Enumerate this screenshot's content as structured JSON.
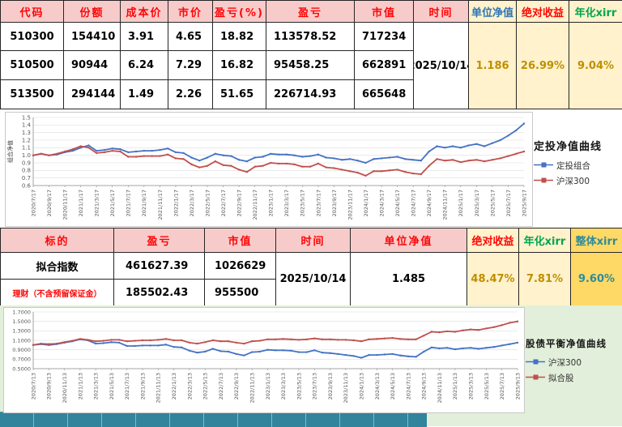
{
  "table1": {
    "headers": [
      "代码",
      "份额",
      "成本价",
      "市价",
      "盈亏(%)",
      "盈亏",
      "市值",
      "时间",
      "单位净值",
      "绝对收益",
      "年化xirr"
    ],
    "rows": [
      [
        "510300",
        "154410",
        "3.91",
        "4.65",
        "18.82",
        "113578.52",
        "717234"
      ],
      [
        "510500",
        "90944",
        "6.24",
        "7.29",
        "16.82",
        "95458.25",
        "662891"
      ],
      [
        "513500",
        "294144",
        "1.49",
        "2.26",
        "51.65",
        "226714.93",
        "665648"
      ]
    ],
    "merged": {
      "time": "2025/10/14",
      "unit_nav": "1.186",
      "abs_return": "26.99%",
      "xirr": "9.04%"
    }
  },
  "table2": {
    "headers": [
      "标的",
      "盈亏",
      "市值",
      "时间",
      "单位净值",
      "绝对收益",
      "年化xirr",
      "整体xirr"
    ],
    "rows": [
      [
        "拟合指数",
        "461627.39",
        "1026629"
      ],
      [
        "理财（不含预留保证金）",
        "185502.43",
        "955500"
      ]
    ],
    "merged": {
      "time": "2025/10/14",
      "unit_nav": "1.485",
      "abs_return": "48.47%",
      "xirr": "7.81%",
      "overall_xirr": "9.60%"
    }
  },
  "colors": {
    "header_pink": "#F8CBCB",
    "header_yellow": "#FFF2CC",
    "header_gold": "#FFD966",
    "red_text": "#FE0606",
    "gold_text": "#BF8F00",
    "teal_text": "#2E8B99",
    "series_blue": "#4472C4",
    "series_red": "#C0504D",
    "teal_strip": "#31849B",
    "light_green_bg": "#E2EFDA"
  },
  "chart_data": [
    {
      "type": "line",
      "title": "定投净值曲线",
      "ylabel": "组合净值",
      "ylim": [
        0.6,
        1.5
      ],
      "ytick_step": 0.1,
      "ytick_decimals": 1,
      "grid": true,
      "legend_position": "right",
      "legend": [
        "定投组合",
        "沪深300"
      ],
      "tick_every": 2,
      "x_tick_labels": [
        "2020/7/17",
        "2020/9/17",
        "2020/11/17",
        "2021/1/17",
        "2021/3/17",
        "2021/5/17",
        "2021/7/17",
        "2021/9/17",
        "2021/11/17",
        "2022/1/17",
        "2022/3/17",
        "2022/5/17",
        "2022/7/17",
        "2022/9/17",
        "2022/11/17",
        "2023/1/17",
        "2023/3/17",
        "2023/5/17",
        "2023/7/17",
        "2023/9/17",
        "2023/11/17",
        "2024/1/17",
        "2024/3/17",
        "2024/5/17",
        "2024/7/17",
        "2024/9/17",
        "2024/11/17",
        "2025/1/17",
        "2025/3/17",
        "2025/5/17",
        "2025/7/17",
        "2025/9/17"
      ],
      "series": [
        {
          "name": "定投组合",
          "color": "#4472C4",
          "values": [
            1.0,
            1.02,
            1.0,
            1.01,
            1.04,
            1.06,
            1.1,
            1.13,
            1.06,
            1.07,
            1.09,
            1.08,
            1.04,
            1.05,
            1.06,
            1.06,
            1.07,
            1.09,
            1.04,
            1.03,
            0.97,
            0.93,
            0.97,
            1.02,
            1.0,
            0.99,
            0.94,
            0.92,
            0.97,
            0.98,
            1.02,
            1.01,
            1.01,
            1.0,
            0.98,
            0.99,
            1.01,
            0.97,
            0.96,
            0.94,
            0.95,
            0.93,
            0.9,
            0.95,
            0.96,
            0.97,
            0.98,
            0.95,
            0.94,
            0.93,
            1.05,
            1.12,
            1.1,
            1.12,
            1.1,
            1.13,
            1.15,
            1.12,
            1.16,
            1.2,
            1.26,
            1.33,
            1.42
          ]
        },
        {
          "name": "沪深300",
          "color": "#C0504D",
          "values": [
            1.0,
            1.02,
            1.0,
            1.02,
            1.05,
            1.08,
            1.12,
            1.1,
            1.03,
            1.04,
            1.06,
            1.05,
            0.98,
            0.98,
            0.99,
            0.99,
            0.99,
            1.01,
            0.96,
            0.95,
            0.88,
            0.84,
            0.86,
            0.92,
            0.87,
            0.86,
            0.81,
            0.78,
            0.85,
            0.86,
            0.9,
            0.89,
            0.89,
            0.88,
            0.85,
            0.85,
            0.89,
            0.84,
            0.83,
            0.81,
            0.79,
            0.77,
            0.73,
            0.79,
            0.79,
            0.8,
            0.81,
            0.78,
            0.76,
            0.75,
            0.86,
            0.95,
            0.93,
            0.94,
            0.91,
            0.93,
            0.94,
            0.92,
            0.94,
            0.96,
            0.99,
            1.02,
            1.05
          ]
        }
      ]
    },
    {
      "type": "line",
      "title": "股债平衡净值曲线",
      "ylabel": "",
      "ylim": [
        0.5,
        1.7
      ],
      "ytick_step": 0.2,
      "ytick_decimals": 4,
      "grid": true,
      "legend_position": "right",
      "legend": [
        "沪深300",
        "拟合股"
      ],
      "tick_every": 2,
      "x_tick_labels": [
        "2020/7/13",
        "2020/9/13",
        "2020/11/13",
        "2021/1/13",
        "2021/3/13",
        "2021/5/13",
        "2021/7/13",
        "2021/9/13",
        "2021/11/13",
        "2022/1/13",
        "2022/3/13",
        "2022/5/13",
        "2022/7/13",
        "2022/9/13",
        "2022/11/13",
        "2023/1/13",
        "2023/3/13",
        "2023/5/13",
        "2023/7/13",
        "2023/9/13",
        "2023/11/13",
        "2024/1/13",
        "2024/3/13",
        "2024/5/13",
        "2024/7/13",
        "2024/9/13",
        "2024/11/13",
        "2025/1/13",
        "2025/3/13",
        "2025/5/13",
        "2025/7/13",
        "2025/9/13"
      ],
      "series": [
        {
          "name": "沪深300",
          "color": "#4472C4",
          "values": [
            1.0,
            1.02,
            1.0,
            1.02,
            1.05,
            1.08,
            1.12,
            1.1,
            1.03,
            1.04,
            1.06,
            1.05,
            0.98,
            0.98,
            0.99,
            0.99,
            0.99,
            1.01,
            0.96,
            0.95,
            0.88,
            0.84,
            0.86,
            0.92,
            0.87,
            0.86,
            0.81,
            0.78,
            0.85,
            0.86,
            0.9,
            0.89,
            0.89,
            0.88,
            0.85,
            0.85,
            0.89,
            0.84,
            0.83,
            0.81,
            0.79,
            0.77,
            0.73,
            0.79,
            0.79,
            0.8,
            0.81,
            0.78,
            0.76,
            0.75,
            0.86,
            0.95,
            0.93,
            0.94,
            0.91,
            0.93,
            0.94,
            0.92,
            0.94,
            0.96,
            0.99,
            1.02,
            1.05
          ]
        },
        {
          "name": "拟合股",
          "color": "#C0504D",
          "values": [
            1.0,
            1.03,
            1.02,
            1.03,
            1.06,
            1.09,
            1.13,
            1.11,
            1.08,
            1.09,
            1.11,
            1.11,
            1.08,
            1.09,
            1.1,
            1.1,
            1.11,
            1.13,
            1.1,
            1.1,
            1.05,
            1.03,
            1.06,
            1.1,
            1.08,
            1.08,
            1.05,
            1.03,
            1.08,
            1.09,
            1.12,
            1.12,
            1.13,
            1.12,
            1.11,
            1.12,
            1.14,
            1.12,
            1.12,
            1.11,
            1.11,
            1.1,
            1.08,
            1.12,
            1.13,
            1.14,
            1.15,
            1.13,
            1.12,
            1.12,
            1.2,
            1.28,
            1.27,
            1.29,
            1.28,
            1.31,
            1.33,
            1.32,
            1.35,
            1.38,
            1.42,
            1.47,
            1.5
          ]
        }
      ]
    }
  ]
}
